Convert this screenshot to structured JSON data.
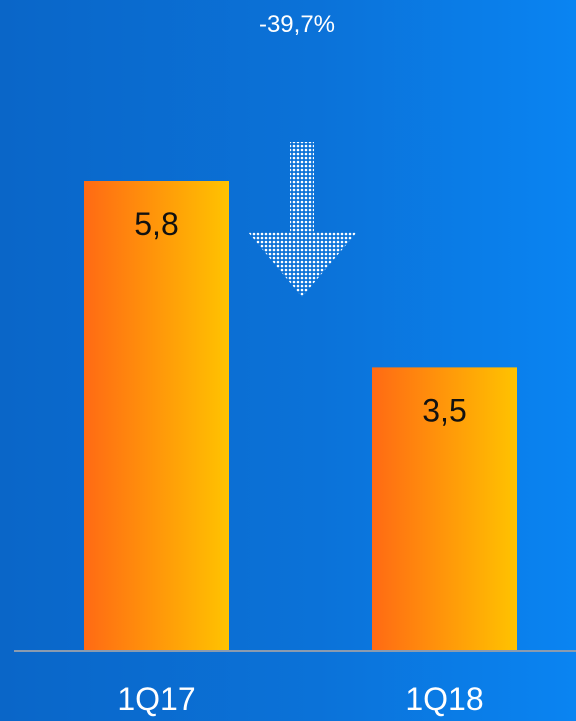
{
  "chart_data": {
    "type": "bar",
    "categories": [
      "1Q17",
      "1Q18"
    ],
    "values": [
      5.8,
      3.5
    ],
    "value_labels": [
      "5,8",
      "3,5"
    ],
    "annotation": "-39,7%",
    "trend": "down",
    "colors": {
      "bar_start": "#ff6a14",
      "bar_end": "#ffc300",
      "axis": "#8a9bb0",
      "text_light": "#ffffff",
      "text_dark": "#111111",
      "arrow": "#ffffff"
    }
  }
}
